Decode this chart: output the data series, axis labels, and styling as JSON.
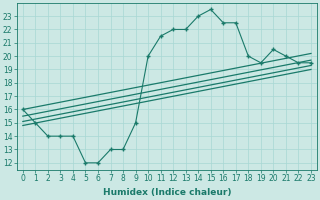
{
  "main_x": [
    0,
    1,
    2,
    3,
    4,
    5,
    6,
    7,
    8,
    9,
    10,
    11,
    12,
    13,
    14,
    15,
    16,
    17,
    18,
    19,
    20,
    21,
    22,
    23
  ],
  "main_y": [
    16,
    15,
    14,
    14,
    14,
    12,
    12,
    13,
    13,
    15,
    20,
    21.5,
    22,
    22,
    23,
    23.5,
    22.5,
    22.5,
    20,
    19.5,
    20.5,
    20,
    19.5,
    19.5
  ],
  "line1_x": [
    0,
    23
  ],
  "line1_y": [
    16.0,
    20.2
  ],
  "line2_x": [
    0,
    23
  ],
  "line2_y": [
    15.5,
    19.7
  ],
  "line3_x": [
    0,
    23
  ],
  "line3_y": [
    15.1,
    19.3
  ],
  "line4_x": [
    0,
    23
  ],
  "line4_y": [
    14.8,
    19.0
  ],
  "color": "#1a7a6a",
  "bg_color": "#cce8e4",
  "grid_color": "#a8d8d4",
  "xlabel": "Humidex (Indice chaleur)",
  "xlim": [
    -0.5,
    23.5
  ],
  "ylim": [
    11.5,
    24.0
  ],
  "xticks": [
    0,
    1,
    2,
    3,
    4,
    5,
    6,
    7,
    8,
    9,
    10,
    11,
    12,
    13,
    14,
    15,
    16,
    17,
    18,
    19,
    20,
    21,
    22,
    23
  ],
  "yticks": [
    12,
    13,
    14,
    15,
    16,
    17,
    18,
    19,
    20,
    21,
    22,
    23
  ],
  "label_fontsize": 6.5,
  "tick_fontsize": 5.5
}
